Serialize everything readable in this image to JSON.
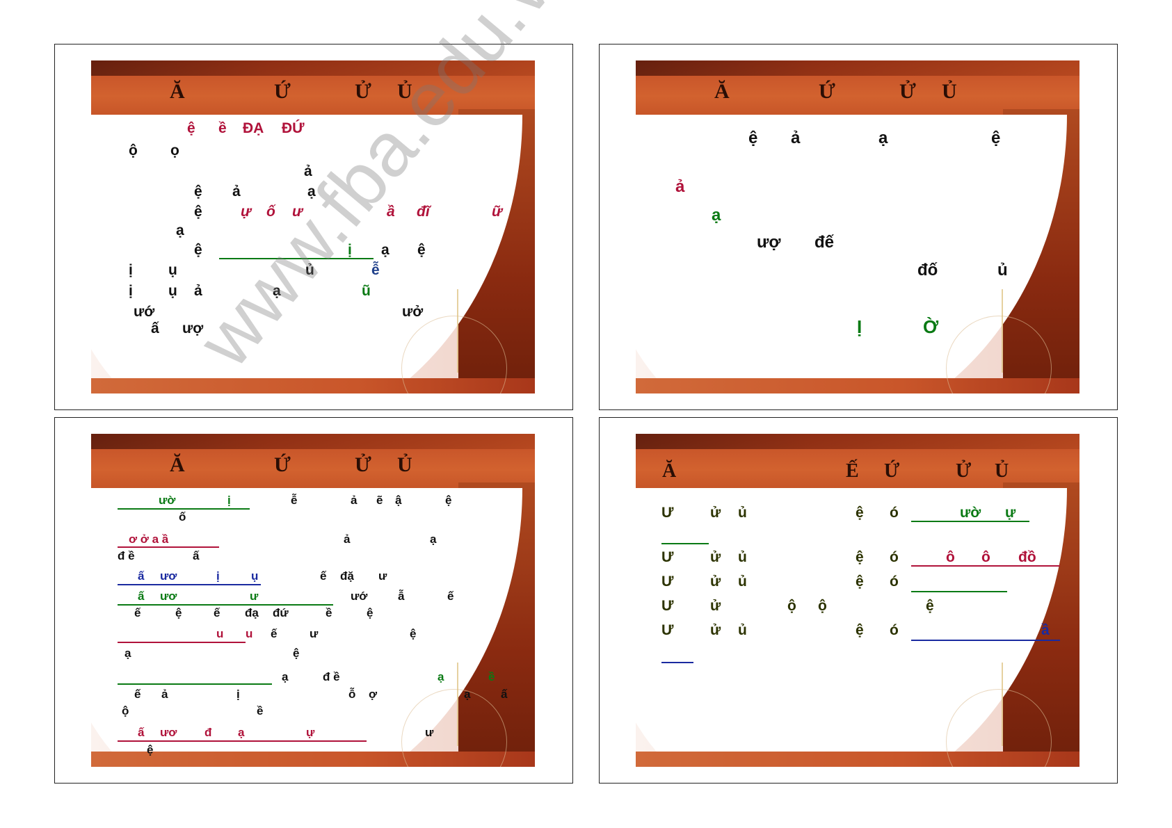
{
  "slides": [
    {
      "title_chars": [
        "Ă",
        "Ứ",
        "Ử",
        "Ủ"
      ],
      "lines": [
        "ệ",
        "ề",
        "ĐẠ",
        "ĐỨ",
        "ộ",
        "ọ",
        "ả",
        "ệ",
        "ả",
        "ạ",
        "ệ",
        "ự",
        "ố",
        "ư",
        "ầ",
        "đĩ",
        "ữ",
        "ạ",
        "ệ",
        "ị",
        "ạ",
        "ệ",
        "ị",
        "ụ",
        "ủ",
        "ễ",
        "ị",
        "ụ",
        "ả",
        "ạ",
        "ũ",
        "ướ",
        "ưở",
        "ấ",
        "ượ"
      ]
    },
    {
      "title_chars": [
        "Ă",
        "Ứ",
        "Ử",
        "Ủ"
      ],
      "lines": [
        "ệ",
        "ả",
        "ạ",
        "ệ",
        "ả",
        "ạ",
        "ượ",
        "đế",
        "đố",
        "ủ",
        "Ị",
        "Ờ"
      ]
    },
    {
      "title_chars": [
        "Ă",
        "Ứ",
        "Ử",
        "Ủ"
      ],
      "lines": [
        "ườ",
        "ị",
        "ễ",
        "ả",
        "ẽ",
        "ậ",
        "ệ",
        "ố",
        "ơ ở a ầ",
        "ả",
        "ạ",
        "đ ề",
        "ấ",
        "ấ",
        "ươ",
        "ị",
        "ụ",
        "ế",
        "đặ",
        "ư",
        "ấ",
        "ươ",
        "ư",
        "ướ",
        "ẫ",
        "ế",
        "ế",
        "ệ",
        "ế",
        "đạ",
        "đứ",
        "ề",
        "ệ",
        "u",
        "u",
        "ế",
        "ư",
        "ệ",
        "ạ",
        "ệ",
        "ạ",
        "đ ề",
        "ạ",
        "ề",
        "ế",
        "ả",
        "ị",
        "ỗ",
        "ợ",
        "ạ",
        "ấ",
        "ộ",
        "ề",
        "ấ",
        "ươ",
        "đ",
        "ạ",
        "ự",
        "ư",
        "ệ"
      ]
    },
    {
      "title_chars": [
        "Ă",
        "Ế",
        "Ứ",
        "Ử",
        "Ủ"
      ],
      "lines": [
        "Ư",
        "ử",
        "ủ",
        "ệ",
        "ó",
        "ườ",
        "ự",
        "Ư",
        "ử",
        "ủ",
        "ệ",
        "ó",
        "ô",
        "ô",
        "đồ",
        "Ư",
        "ử",
        "ủ",
        "ệ",
        "ó",
        "Ư",
        "ử",
        "ộ",
        "ộ",
        "ệ",
        "Ư",
        "ử",
        "ủ",
        "ệ",
        "ó",
        "ầ"
      ]
    }
  ],
  "watermark": "www.fba.edu.vn"
}
